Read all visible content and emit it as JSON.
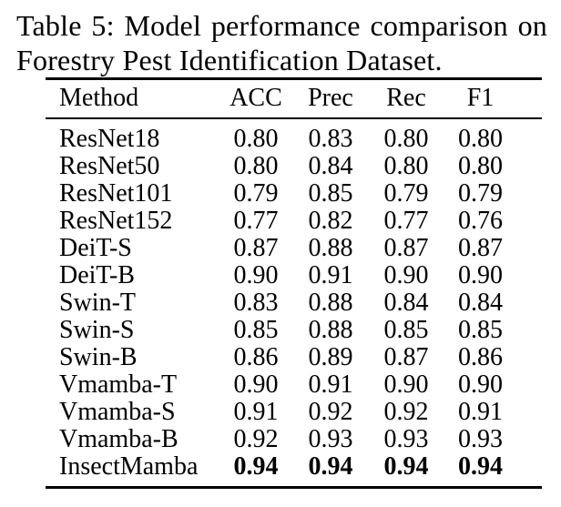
{
  "caption": {
    "line1": "Table 5: Model performance comparison on",
    "line2": "Forestry Pest Identification Dataset."
  },
  "table": {
    "columns": [
      "Method",
      "ACC",
      "Prec",
      "Rec",
      "F1"
    ],
    "rows": [
      {
        "method": "ResNet18",
        "acc": "0.80",
        "prec": "0.83",
        "rec": "0.80",
        "f1": "0.80",
        "bold": false
      },
      {
        "method": "ResNet50",
        "acc": "0.80",
        "prec": "0.84",
        "rec": "0.80",
        "f1": "0.80",
        "bold": false
      },
      {
        "method": "ResNet101",
        "acc": "0.79",
        "prec": "0.85",
        "rec": "0.79",
        "f1": "0.79",
        "bold": false
      },
      {
        "method": "ResNet152",
        "acc": "0.77",
        "prec": "0.82",
        "rec": "0.77",
        "f1": "0.76",
        "bold": false
      },
      {
        "method": "DeiT-S",
        "acc": "0.87",
        "prec": "0.88",
        "rec": "0.87",
        "f1": "0.87",
        "bold": false
      },
      {
        "method": "DeiT-B",
        "acc": "0.90",
        "prec": "0.91",
        "rec": "0.90",
        "f1": "0.90",
        "bold": false
      },
      {
        "method": "Swin-T",
        "acc": "0.83",
        "prec": "0.88",
        "rec": "0.84",
        "f1": "0.84",
        "bold": false
      },
      {
        "method": "Swin-S",
        "acc": "0.85",
        "prec": "0.88",
        "rec": "0.85",
        "f1": "0.85",
        "bold": false
      },
      {
        "method": "Swin-B",
        "acc": "0.86",
        "prec": "0.89",
        "rec": "0.87",
        "f1": "0.86",
        "bold": false
      },
      {
        "method": "Vmamba-T",
        "acc": "0.90",
        "prec": "0.91",
        "rec": "0.90",
        "f1": "0.90",
        "bold": false
      },
      {
        "method": "Vmamba-S",
        "acc": "0.91",
        "prec": "0.92",
        "rec": "0.92",
        "f1": "0.91",
        "bold": false
      },
      {
        "method": "Vmamba-B",
        "acc": "0.92",
        "prec": "0.93",
        "rec": "0.93",
        "f1": "0.93",
        "bold": false
      },
      {
        "method": "InsectMamba",
        "acc": "0.94",
        "prec": "0.94",
        "rec": "0.94",
        "f1": "0.94",
        "bold": true
      }
    ]
  },
  "colors": {
    "text": "#000000",
    "background": "#ffffff",
    "rule": "#000000"
  },
  "chart_data": {
    "type": "table",
    "title": "Table 5: Model performance comparison on Forestry Pest Identification Dataset.",
    "columns": [
      "Method",
      "ACC",
      "Prec",
      "Rec",
      "F1"
    ],
    "rows": [
      [
        "ResNet18",
        0.8,
        0.83,
        0.8,
        0.8
      ],
      [
        "ResNet50",
        0.8,
        0.84,
        0.8,
        0.8
      ],
      [
        "ResNet101",
        0.79,
        0.85,
        0.79,
        0.79
      ],
      [
        "ResNet152",
        0.77,
        0.82,
        0.77,
        0.76
      ],
      [
        "DeiT-S",
        0.87,
        0.88,
        0.87,
        0.87
      ],
      [
        "DeiT-B",
        0.9,
        0.91,
        0.9,
        0.9
      ],
      [
        "Swin-T",
        0.83,
        0.88,
        0.84,
        0.84
      ],
      [
        "Swin-S",
        0.85,
        0.88,
        0.85,
        0.85
      ],
      [
        "Swin-B",
        0.86,
        0.89,
        0.87,
        0.86
      ],
      [
        "Vmamba-T",
        0.9,
        0.91,
        0.9,
        0.9
      ],
      [
        "Vmamba-S",
        0.91,
        0.92,
        0.92,
        0.91
      ],
      [
        "Vmamba-B",
        0.92,
        0.93,
        0.93,
        0.93
      ],
      [
        "InsectMamba",
        0.94,
        0.94,
        0.94,
        0.94
      ]
    ],
    "best_row": "InsectMamba",
    "best_row_style": "bold"
  }
}
